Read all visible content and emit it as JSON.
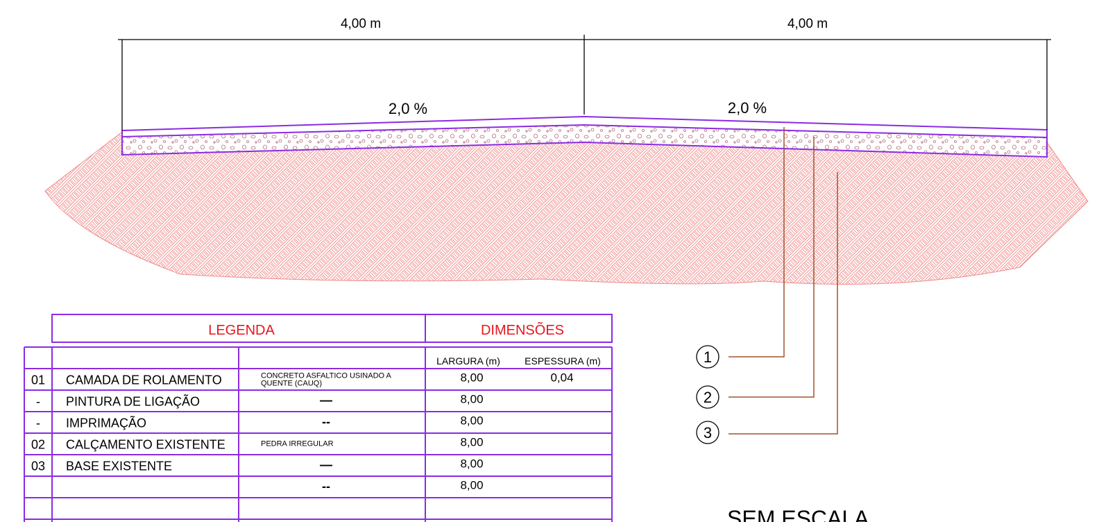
{
  "drawing": {
    "dimensions": [
      "4,00 m",
      "4,00 m"
    ],
    "slopes": [
      "2,0 %",
      "2,0 %"
    ],
    "callouts": [
      "1",
      "2",
      "3"
    ],
    "scale_note": "SEM ESCALA"
  },
  "table": {
    "legend_title": "LEGENDA",
    "dimensions_title": "DIMENSÕES",
    "width_header": "LARGURA (m)",
    "thickness_header": "ESPESSURA (m)",
    "rows": [
      {
        "code": "01",
        "name": "CAMADA DE ROLAMENTO",
        "spec": "CONCRETO ASFALTICO USINADO A QUENTE (CAUQ)",
        "width": "8,00",
        "thickness": "0,04"
      },
      {
        "code": "-",
        "name": "PINTURA DE LIGAÇÃO",
        "spec": "—",
        "width": "8,00"
      },
      {
        "code": "-",
        "name": "IMPRIMAÇÃO",
        "spec": "--",
        "width": "8,00"
      },
      {
        "code": "02",
        "name": "CALÇAMENTO EXISTENTE",
        "spec": "PEDRA IRREGULAR",
        "width": "8,00"
      },
      {
        "code": "03",
        "name": "BASE EXISTENTE",
        "spec": "—",
        "width": "8,00"
      },
      {
        "spec": "--",
        "width": "8,00"
      }
    ]
  }
}
